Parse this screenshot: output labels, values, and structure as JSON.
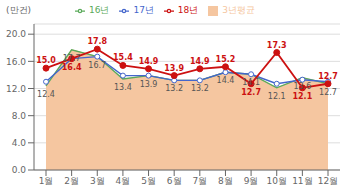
{
  "chart_data": {
    "type": "line",
    "ylabel": "(만건)",
    "categories": [
      "1월",
      "2월",
      "3월",
      "4월",
      "5월",
      "6월",
      "7월",
      "8월",
      "9월",
      "10월",
      "11월",
      "12월"
    ],
    "series": [
      {
        "name": "3년평균",
        "type": "area",
        "color": "#f5c6a0",
        "marker": "none",
        "data_labels": true,
        "values": [
          12.4,
          17.7,
          16.7,
          13.4,
          13.9,
          13.2,
          13.2,
          14.4,
          14.1,
          12.1,
          13.6,
          12.7
        ]
      },
      {
        "name": "16년",
        "type": "line",
        "color": "#5aaa5a",
        "marker": "none",
        "values": [
          12.4,
          17.7,
          16.7,
          13.4,
          13.9,
          13.2,
          13.2,
          14.4,
          14.1,
          12.1,
          13.6,
          12.7
        ]
      },
      {
        "name": "17년",
        "type": "line",
        "color": "#4466cc",
        "marker": "open_circle",
        "values": [
          13.0,
          16.4,
          16.7,
          13.9,
          13.9,
          13.2,
          13.2,
          14.4,
          14.1,
          12.7,
          13.3,
          13.0
        ]
      },
      {
        "name": "18년",
        "type": "line",
        "color": "#cc1111",
        "marker": "circle",
        "data_labels": true,
        "values": [
          15.0,
          16.4,
          17.8,
          15.4,
          14.9,
          13.9,
          14.9,
          15.2,
          12.7,
          17.3,
          12.1,
          12.7
        ],
        "value_labels": [
          "15.0",
          "16.4",
          "17.8",
          "15.4",
          "14.9",
          "13.9",
          "14.9",
          "15.2",
          "12.7",
          "17.3",
          "12.1",
          "12.7"
        ]
      }
    ],
    "ylim": [
      0.0,
      21.5
    ],
    "yticks": [
      {
        "value": 0,
        "label": "0.0"
      },
      {
        "value": 4,
        "label": "4.0"
      },
      {
        "value": 8,
        "label": "8.0"
      },
      {
        "value": 12,
        "label": "12.0"
      },
      {
        "value": 16,
        "label": "16.0"
      },
      {
        "value": 20,
        "label": "20.0"
      }
    ],
    "grid": true,
    "legend": "top"
  }
}
